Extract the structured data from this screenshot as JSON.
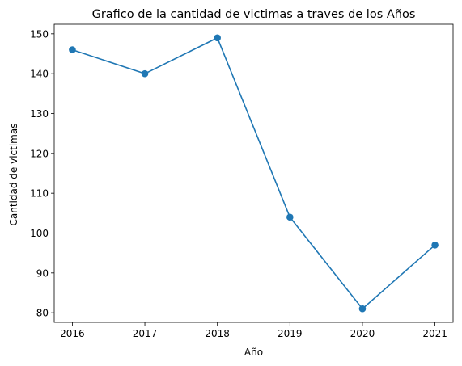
{
  "chart_data": {
    "type": "line",
    "title": "Grafico de la cantidad de victimas a traves de los Años",
    "xlabel": "Año",
    "ylabel": "Cantidad de victimas",
    "x": [
      2016,
      2017,
      2018,
      2019,
      2020,
      2021
    ],
    "series": [
      {
        "values": [
          146,
          140,
          149,
          104,
          81,
          97
        ],
        "color": "#1f77b4",
        "marker": "circle"
      }
    ],
    "xlim": [
      2015.75,
      2021.25
    ],
    "ylim": [
      77.6,
      152.4
    ],
    "xticks": [
      "2016",
      "2017",
      "2018",
      "2019",
      "2020",
      "2021"
    ],
    "yticks": [
      "80",
      "90",
      "100",
      "110",
      "120",
      "130",
      "140",
      "150"
    ],
    "grid": false
  }
}
